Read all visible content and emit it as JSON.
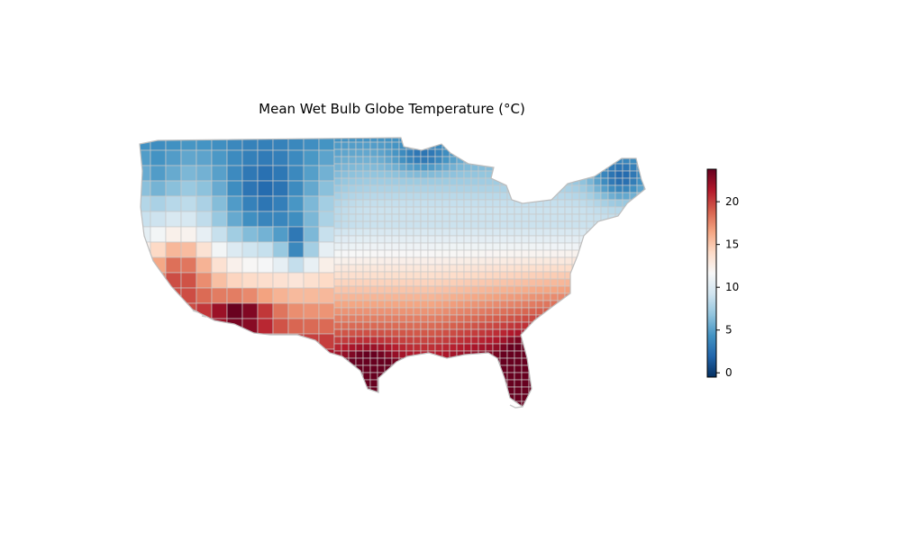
{
  "title": "Mean Wet Bulb Globe Temperature (°C)",
  "colorbar": {
    "min": -0.5,
    "max": 23.8,
    "ticks": [
      {
        "value": 0,
        "label": "0"
      },
      {
        "value": 5,
        "label": "5"
      },
      {
        "value": 10,
        "label": "10"
      },
      {
        "value": 15,
        "label": "15"
      },
      {
        "value": 20,
        "label": "20"
      }
    ],
    "colormap": "RdBu_r",
    "colors": [
      "#053061",
      "#2166ac",
      "#4393c3",
      "#92c5de",
      "#d1e5f0",
      "#f7f7f7",
      "#fddbc7",
      "#f4a582",
      "#d6604d",
      "#b2182b",
      "#67001f"
    ]
  },
  "map": {
    "region": "Contiguous United States",
    "unit": "county",
    "border_color": "#c8c8c8"
  }
}
